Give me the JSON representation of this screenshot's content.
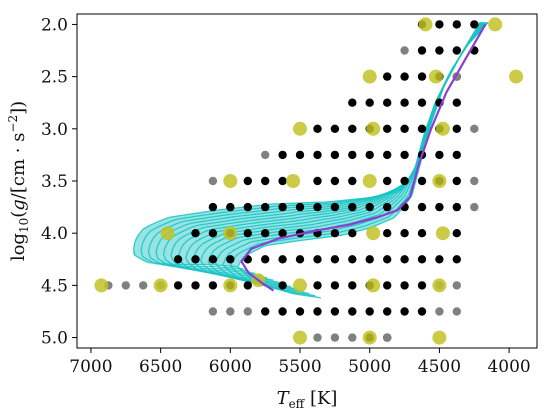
{
  "chart_data": {
    "type": "scatter",
    "title": "",
    "xlabel": "T_eff [K]",
    "ylabel": "log10(g/[cm·s^-2])",
    "xlim": [
      7100,
      3800
    ],
    "ylim": [
      5.1,
      1.9
    ],
    "x_inverted": true,
    "y_inverted": true,
    "grid": false,
    "xticks": [
      7000,
      6500,
      6000,
      5500,
      5000,
      4500,
      4000
    ],
    "xtick_labels": [
      "7000",
      "6500",
      "6000",
      "5500",
      "5000",
      "4500",
      "4000"
    ],
    "yticks": [
      2.0,
      2.5,
      3.0,
      3.5,
      4.0,
      4.5,
      5.0
    ],
    "ytick_labels": [
      "2.0",
      "2.5",
      "3.0",
      "3.5",
      "4.0",
      "4.5",
      "5.0"
    ],
    "colors": {
      "black_grid": "#000000",
      "gray_grid": "#808080",
      "highlight": "#c2c228",
      "track_fan": "#19c4c4",
      "main_track": "#8b3fd0"
    },
    "series": [
      {
        "style": "black_grid",
        "points": [
          [
            4375,
            2.0
          ],
          [
            4250,
            2.0
          ],
          [
            4500,
            2.0
          ],
          [
            4625,
            2.0
          ],
          [
            4250,
            2.25
          ],
          [
            4375,
            2.25
          ],
          [
            4500,
            2.25
          ],
          [
            4625,
            2.25
          ],
          [
            4750,
            2.5
          ],
          [
            4625,
            2.5
          ],
          [
            4875,
            2.5
          ],
          [
            4375,
            2.5
          ],
          [
            4500,
            2.5
          ],
          [
            4750,
            2.75
          ],
          [
            4625,
            2.75
          ],
          [
            5000,
            2.75
          ],
          [
            4875,
            2.75
          ],
          [
            5125,
            2.75
          ],
          [
            4375,
            2.75
          ],
          [
            4500,
            2.75
          ],
          [
            5375,
            3.0
          ],
          [
            5250,
            3.0
          ],
          [
            5125,
            3.0
          ],
          [
            5000,
            3.0
          ],
          [
            4875,
            3.0
          ],
          [
            4750,
            3.0
          ],
          [
            4625,
            3.0
          ],
          [
            4375,
            3.0
          ],
          [
            4500,
            3.0
          ],
          [
            5625,
            3.25
          ],
          [
            5500,
            3.25
          ],
          [
            5375,
            3.25
          ],
          [
            5250,
            3.25
          ],
          [
            5125,
            3.25
          ],
          [
            5000,
            3.25
          ],
          [
            4875,
            3.25
          ],
          [
            4750,
            3.25
          ],
          [
            4625,
            3.25
          ],
          [
            4375,
            3.25
          ],
          [
            4500,
            3.25
          ],
          [
            5875,
            3.5
          ],
          [
            5750,
            3.5
          ],
          [
            5625,
            3.5
          ],
          [
            5375,
            3.5
          ],
          [
            5250,
            3.5
          ],
          [
            5125,
            3.5
          ],
          [
            4875,
            3.5
          ],
          [
            4750,
            3.5
          ],
          [
            4625,
            3.5
          ],
          [
            4375,
            3.5
          ],
          [
            4500,
            3.5
          ],
          [
            6125,
            3.75
          ],
          [
            6000,
            3.75
          ],
          [
            5875,
            3.75
          ],
          [
            5750,
            3.75
          ],
          [
            5625,
            3.75
          ],
          [
            5500,
            3.75
          ],
          [
            5375,
            3.75
          ],
          [
            5250,
            3.75
          ],
          [
            5125,
            3.75
          ],
          [
            5000,
            3.75
          ],
          [
            4875,
            3.75
          ],
          [
            4750,
            3.75
          ],
          [
            4625,
            3.75
          ],
          [
            4375,
            3.75
          ],
          [
            4500,
            3.75
          ],
          [
            6250,
            4.0
          ],
          [
            6125,
            4.0
          ],
          [
            6000,
            4.0
          ],
          [
            5875,
            4.0
          ],
          [
            5750,
            4.0
          ],
          [
            5625,
            4.0
          ],
          [
            5500,
            4.0
          ],
          [
            5375,
            4.0
          ],
          [
            5250,
            4.0
          ],
          [
            5125,
            4.0
          ],
          [
            4875,
            4.0
          ],
          [
            4750,
            4.0
          ],
          [
            4625,
            4.0
          ],
          [
            4375,
            4.0
          ],
          [
            6375,
            4.25
          ],
          [
            6250,
            4.25
          ],
          [
            6125,
            4.25
          ],
          [
            6000,
            4.25
          ],
          [
            5875,
            4.25
          ],
          [
            5750,
            4.25
          ],
          [
            5625,
            4.25
          ],
          [
            5500,
            4.25
          ],
          [
            5375,
            4.25
          ],
          [
            5250,
            4.25
          ],
          [
            5125,
            4.25
          ],
          [
            5000,
            4.25
          ],
          [
            4875,
            4.25
          ],
          [
            4750,
            4.25
          ],
          [
            4625,
            4.25
          ],
          [
            4500,
            4.25
          ],
          [
            4375,
            4.25
          ],
          [
            6375,
            4.5
          ],
          [
            6250,
            4.5
          ],
          [
            6125,
            4.5
          ],
          [
            6000,
            4.5
          ],
          [
            5875,
            4.5
          ],
          [
            5625,
            4.5
          ],
          [
            5375,
            4.5
          ],
          [
            5250,
            4.5
          ],
          [
            5125,
            4.5
          ],
          [
            5000,
            4.5
          ],
          [
            4875,
            4.5
          ],
          [
            4750,
            4.5
          ],
          [
            4625,
            4.5
          ],
          [
            5750,
            4.75
          ],
          [
            5625,
            4.75
          ],
          [
            5500,
            4.75
          ],
          [
            5375,
            4.75
          ],
          [
            5250,
            4.75
          ],
          [
            5125,
            4.75
          ],
          [
            5000,
            4.75
          ],
          [
            4875,
            4.75
          ],
          [
            4750,
            4.75
          ],
          [
            4625,
            4.75
          ],
          [
            5000,
            5.0
          ],
          [
            4875,
            5.0
          ]
        ]
      },
      {
        "style": "gray_grid",
        "points": [
          [
            4750,
            2.25
          ],
          [
            4375,
            2.5
          ],
          [
            4250,
            3.0
          ],
          [
            5750,
            3.25
          ],
          [
            6125,
            3.5
          ],
          [
            4250,
            3.5
          ],
          [
            4250,
            3.75
          ],
          [
            6875,
            4.5
          ],
          [
            6750,
            4.5
          ],
          [
            6625,
            4.5
          ],
          [
            6500,
            4.5
          ],
          [
            4375,
            4.5
          ],
          [
            4500,
            4.5
          ],
          [
            4500,
            4.75
          ],
          [
            4375,
            4.75
          ],
          [
            6125,
            4.75
          ],
          [
            6000,
            4.75
          ],
          [
            5875,
            4.75
          ],
          [
            5375,
            5.0
          ],
          [
            5250,
            5.0
          ],
          [
            5125,
            5.0
          ],
          [
            4875,
            5.0
          ]
        ]
      },
      {
        "style": "highlight",
        "points": [
          [
            4600,
            2.0
          ],
          [
            4100,
            2.0
          ],
          [
            5000,
            2.5
          ],
          [
            4525,
            2.5
          ],
          [
            3950,
            2.5
          ],
          [
            5500,
            3.0
          ],
          [
            4975,
            3.0
          ],
          [
            4475,
            3.0
          ],
          [
            6000,
            3.5
          ],
          [
            5550,
            3.5
          ],
          [
            5000,
            3.5
          ],
          [
            4500,
            3.5
          ],
          [
            6450,
            4.0
          ],
          [
            6000,
            4.0
          ],
          [
            4975,
            4.0
          ],
          [
            4475,
            4.0
          ],
          [
            6925,
            4.5
          ],
          [
            6500,
            4.5
          ],
          [
            6000,
            4.5
          ],
          [
            5800,
            4.45
          ],
          [
            5500,
            4.5
          ],
          [
            4975,
            4.5
          ],
          [
            4500,
            4.5
          ],
          [
            5500,
            5.0
          ],
          [
            5000,
            5.0
          ],
          [
            4500,
            5.0
          ]
        ]
      }
    ],
    "main_track": [
      [
        4170,
        2.0
      ],
      [
        4300,
        2.3
      ],
      [
        4450,
        2.65
      ],
      [
        4560,
        3.0
      ],
      [
        4650,
        3.35
      ],
      [
        4710,
        3.65
      ],
      [
        4800,
        3.78
      ],
      [
        4950,
        3.85
      ],
      [
        5150,
        3.92
      ],
      [
        5400,
        3.98
      ],
      [
        5650,
        4.05
      ],
      [
        5850,
        4.15
      ],
      [
        5920,
        4.27
      ],
      [
        5870,
        4.38
      ],
      [
        5770,
        4.48
      ],
      [
        5690,
        4.55
      ]
    ],
    "track_fan": {
      "upper_edge": [
        [
          4150,
          1.98
        ],
        [
          4300,
          2.2
        ],
        [
          4420,
          2.45
        ],
        [
          4530,
          2.75
        ],
        [
          4610,
          3.05
        ],
        [
          4680,
          3.4
        ],
        [
          4780,
          3.6
        ],
        [
          5000,
          3.66
        ],
        [
          5300,
          3.7
        ],
        [
          5700,
          3.72
        ],
        [
          6100,
          3.78
        ],
        [
          6450,
          3.85
        ],
        [
          6620,
          3.95
        ],
        [
          6680,
          4.05
        ]
      ],
      "lower_edge": [
        [
          4210,
          1.98
        ],
        [
          4350,
          2.3
        ],
        [
          4470,
          2.6
        ],
        [
          4560,
          2.95
        ],
        [
          4630,
          3.3
        ],
        [
          4700,
          3.65
        ],
        [
          4820,
          3.85
        ],
        [
          5000,
          3.95
        ],
        [
          5200,
          4.02
        ],
        [
          5500,
          4.07
        ],
        [
          5750,
          4.12
        ],
        [
          5900,
          4.22
        ],
        [
          5950,
          4.32
        ],
        [
          5850,
          4.44
        ],
        [
          5700,
          4.52
        ],
        [
          5550,
          4.58
        ],
        [
          5350,
          4.62
        ]
      ],
      "left_bottom_edge": [
        [
          6680,
          4.05
        ],
        [
          6700,
          4.2
        ],
        [
          6600,
          4.28
        ],
        [
          6400,
          4.3
        ],
        [
          6150,
          4.3
        ],
        [
          5950,
          4.32
        ]
      ],
      "line_count": 14
    }
  }
}
